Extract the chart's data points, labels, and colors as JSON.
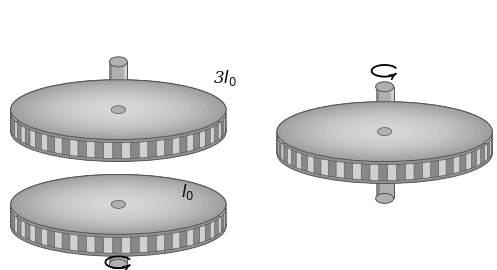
{
  "bg_color": "#ffffff",
  "text_color": "#111111",
  "label_3I0": "3$I_0$",
  "label_I0": "$I_0$",
  "disk_top_center": "#c8c8c8",
  "disk_top_edge": "#a0a0a0",
  "disk_side_top": "#b8b8b8",
  "disk_side_bot": "#909090",
  "rim_light": "#c8c8c8",
  "rim_dark": "#8a8a8a",
  "axle_light": "#d0d0d0",
  "axle_mid": "#b0b0b0",
  "axle_dark": "#888888",
  "edge_color": "#555555",
  "knurl_light": "#d0d0d0",
  "knurl_dark": "#888888"
}
